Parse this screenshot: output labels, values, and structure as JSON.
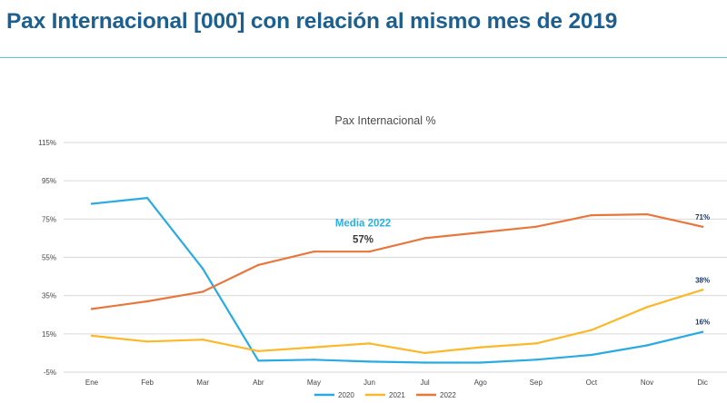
{
  "header": {
    "title": "Pax Internacional [000] con relación al mismo mes de 2019"
  },
  "colors": {
    "title": "#1d5f8f",
    "rule": "#5ec4dc",
    "s2020": "#29abe2",
    "s2021": "#fbb829",
    "s2022": "#e8773d"
  },
  "chart_data": {
    "type": "line",
    "title": "Pax Internacional %",
    "xlabel": "",
    "ylabel": "",
    "categories": [
      "Ene",
      "Feb",
      "Mar",
      "Abr",
      "May",
      "Jun",
      "Jul",
      "Ago",
      "Sep",
      "Oct",
      "Nov",
      "Dic"
    ],
    "ylim": [
      -5,
      115
    ],
    "yticks": [
      -5,
      15,
      35,
      55,
      75,
      95,
      115
    ],
    "ytick_labels": [
      "-5%",
      "15%",
      "35%",
      "55%",
      "75%",
      "95%",
      "115%"
    ],
    "grid": true,
    "legend_position": "bottom",
    "series": [
      {
        "name": "2020",
        "color": "#29abe2",
        "values": [
          83,
          86,
          49,
          1,
          1.5,
          0.5,
          0,
          0,
          1.5,
          4,
          9,
          16
        ],
        "end_label": "16%"
      },
      {
        "name": "2021",
        "color": "#fbb829",
        "values": [
          14,
          11,
          12,
          6,
          8,
          10,
          5,
          8,
          10,
          17,
          29,
          38
        ],
        "end_label": "38%"
      },
      {
        "name": "2022",
        "color": "#e8773d",
        "values": [
          28,
          32,
          37,
          51,
          58,
          58,
          65,
          68,
          71,
          77,
          77.5,
          71
        ],
        "end_label": "71%"
      }
    ],
    "annotation": {
      "label": "Media 2022",
      "value": "57%",
      "x_category": "Jun",
      "y": 73
    }
  }
}
